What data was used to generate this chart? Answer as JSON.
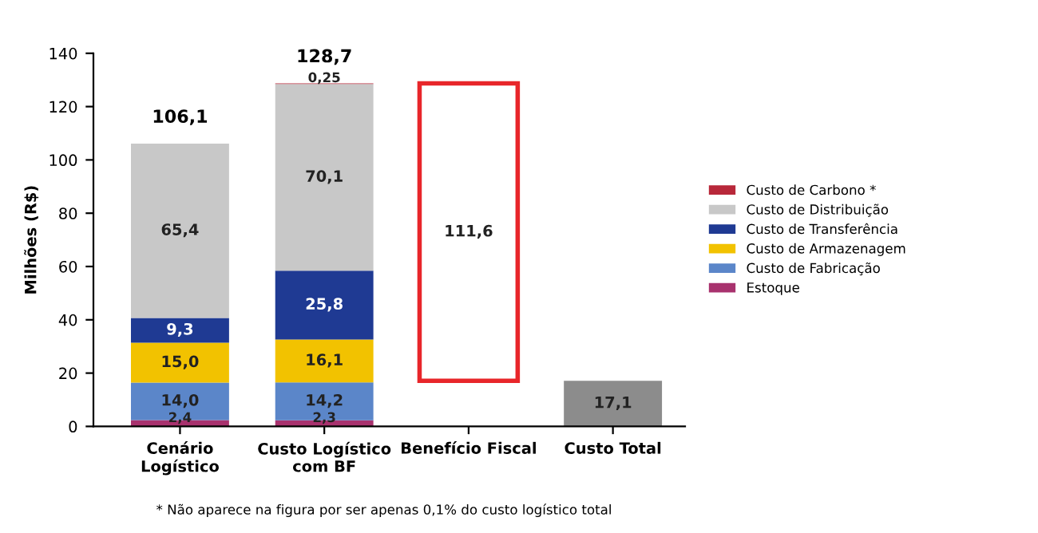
{
  "chart_data": {
    "type": "bar",
    "stacked": true,
    "ylabel": "Milhões (R$)",
    "categories": [
      "Cenário\nLogístico",
      "Custo Logístico\ncom BF",
      "Benefício Fiscal",
      "Custo Total"
    ],
    "ylim": [
      0,
      140
    ],
    "yticks": [
      0,
      20,
      40,
      60,
      80,
      100,
      120,
      140
    ],
    "grid": false,
    "legend": "right",
    "series": [
      {
        "name": "Estoque",
        "color": "#a8326e",
        "values": [
          2.4,
          2.3,
          null,
          null
        ],
        "value_labels": [
          "2,4",
          "2,3",
          null,
          null
        ]
      },
      {
        "name": "Custo de Fabricação",
        "color": "#5b86c9",
        "values": [
          14.0,
          14.2,
          null,
          null
        ],
        "value_labels": [
          "14,0",
          "14,2",
          null,
          null
        ]
      },
      {
        "name": "Custo de Armazenagem",
        "color": "#f2c200",
        "values": [
          15.0,
          16.1,
          null,
          null
        ],
        "value_labels": [
          "15,0",
          "16,1",
          null,
          null
        ]
      },
      {
        "name": "Custo de Transferência",
        "color": "#1f3a93",
        "values": [
          9.3,
          25.8,
          null,
          null
        ],
        "value_labels": [
          "9,3",
          "25,8",
          null,
          null
        ]
      },
      {
        "name": "Custo de Distribuição",
        "color": "#c8c8c8",
        "values": [
          65.4,
          70.1,
          null,
          null
        ],
        "value_labels": [
          "65,4",
          "70,1",
          null,
          null
        ]
      },
      {
        "name": "Custo de Carbono *",
        "color": "#b8283a",
        "values": [
          null,
          0.25,
          null,
          null
        ],
        "value_labels": [
          null,
          "0,25",
          null,
          null
        ]
      },
      {
        "color": "#e8262a",
        "values": [
          null,
          null,
          111.6,
          null
        ],
        "base": [
          null,
          null,
          17.1,
          null
        ],
        "value_labels": [
          null,
          null,
          "111,6",
          null
        ]
      },
      {
        "color": "#8c8c8c",
        "values": [
          null,
          null,
          null,
          17.1
        ],
        "value_labels": [
          null,
          null,
          null,
          "17,1"
        ]
      }
    ],
    "totals": [
      "106,1",
      "128,7",
      null,
      null
    ],
    "annotations": [
      "* Não aparece na figura por ser apenas 0,1% do custo logístico total"
    ]
  }
}
